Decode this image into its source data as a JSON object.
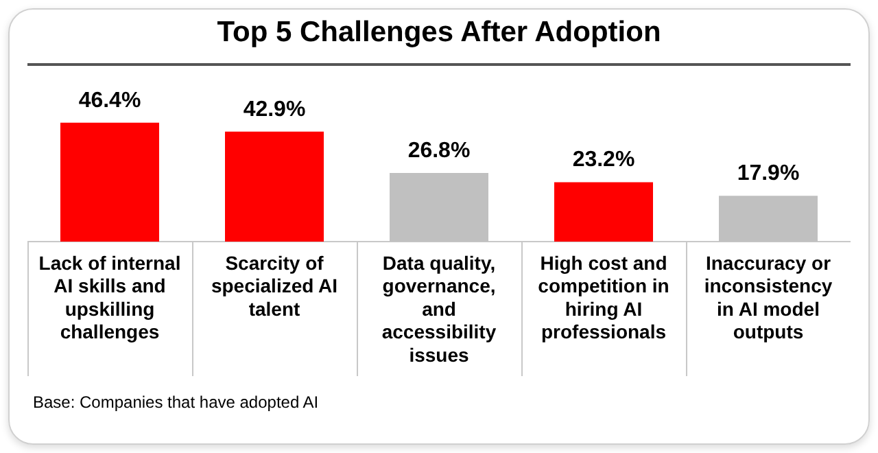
{
  "chart_data": {
    "type": "bar",
    "title": "Top 5 Challenges After Adoption",
    "categories": [
      "Lack of internal AI skills and upskilling challenges",
      "Scarcity of specialized AI talent",
      "Data quality, governance, and accessibility issues",
      "High cost and competition in hiring AI professionals",
      "Inaccuracy or inconsistency in AI model outputs"
    ],
    "values": [
      46.4,
      42.9,
      26.8,
      23.2,
      17.9
    ],
    "colors": [
      "#ff0000",
      "#ff0000",
      "#c0c0c0",
      "#ff0000",
      "#c0c0c0"
    ],
    "value_labels": [
      "46.4%",
      "42.9%",
      "26.8%",
      "23.2%",
      "17.9%"
    ],
    "grid": false,
    "legend": false,
    "annotations": [
      "Base: Companies that have adopted AI"
    ]
  }
}
